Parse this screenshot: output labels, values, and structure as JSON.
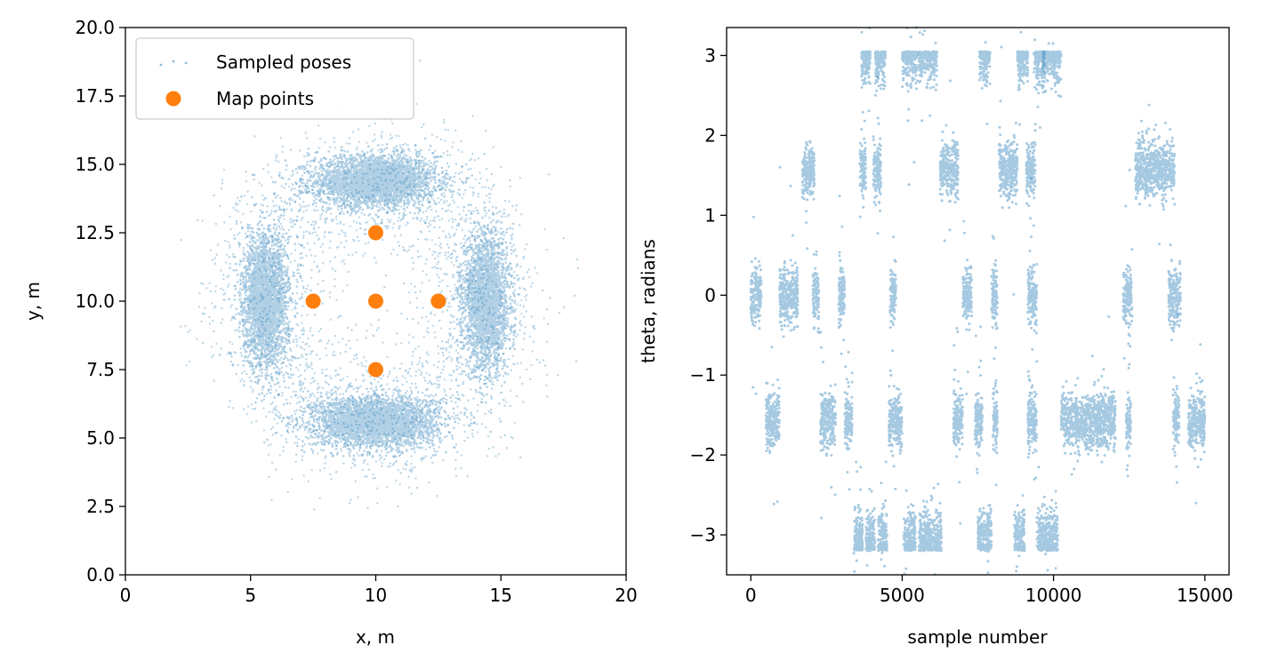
{
  "colors": {
    "poses": "#1f77b4",
    "map_points": "#ff7f0e",
    "axes": "#000000",
    "legend_border": "#cccccc",
    "background": "#ffffff"
  },
  "chart_data": [
    {
      "type": "scatter",
      "xlabel": "x, m",
      "ylabel": "y, m",
      "xlim": [
        0,
        20
      ],
      "ylim": [
        0,
        20
      ],
      "xticks": [
        0,
        5,
        10,
        15,
        20
      ],
      "xtick_labels": [
        "0",
        "5",
        "10",
        "15",
        "20"
      ],
      "yticks": [
        0,
        2.5,
        5,
        7.5,
        10,
        12.5,
        15,
        17.5,
        20
      ],
      "ytick_labels": [
        "0.0",
        "2.5",
        "5.0",
        "7.5",
        "10.0",
        "12.5",
        "15.0",
        "17.5",
        "20.0"
      ],
      "grid": false,
      "legend": {
        "position": "upper-left",
        "entries": [
          "Sampled poses",
          "Map points"
        ]
      },
      "series": [
        {
          "name": "Sampled poses",
          "marker": "dot",
          "clusters": [
            {
              "center": [
                10,
                14.4
              ],
              "spread": [
                1.2,
                0.45
              ],
              "points": 3200
            },
            {
              "center": [
                10,
                5.6
              ],
              "spread": [
                1.2,
                0.45
              ],
              "points": 3200
            },
            {
              "center": [
                5.6,
                10
              ],
              "spread": [
                0.45,
                1.2
              ],
              "points": 2600
            },
            {
              "center": [
                14.4,
                10
              ],
              "spread": [
                0.45,
                1.2
              ],
              "points": 2600
            }
          ],
          "ring": {
            "center": [
              10,
              10
            ],
            "radius": 4.6,
            "spread": 1.3,
            "points": 3000
          }
        },
        {
          "name": "Map points",
          "marker": "circle",
          "x": [
            10,
            7.5,
            10,
            12.5,
            10
          ],
          "y": [
            12.5,
            10,
            10,
            10,
            7.5
          ]
        }
      ]
    },
    {
      "type": "scatter",
      "xlabel": "sample number",
      "ylabel": "theta, radians",
      "xlim": [
        -800,
        15800
      ],
      "ylim": [
        -3.5,
        3.35
      ],
      "xticks": [
        0,
        5000,
        10000,
        15000
      ],
      "xtick_labels": [
        "0",
        "5000",
        "10000",
        "15000"
      ],
      "yticks": [
        -3,
        -2,
        -1,
        0,
        1,
        2,
        3
      ],
      "ytick_labels": [
        "−3",
        "−2",
        "−1",
        "0",
        "1",
        "2",
        "3"
      ],
      "grid": false,
      "series": [
        {
          "marker": "dot",
          "x_range": [
            0,
            15000
          ],
          "theta_levels": [
            3.0,
            1.57,
            0,
            -1.57,
            -3.05
          ],
          "segments": [
            {
              "start": 0,
              "end": 350,
              "theta": 0
            },
            {
              "start": 500,
              "end": 950,
              "theta": -1.57
            },
            {
              "start": 950,
              "end": 1550,
              "theta": 0
            },
            {
              "start": 1700,
              "end": 2100,
              "theta": 1.57
            },
            {
              "start": 2050,
              "end": 2250,
              "theta": 0
            },
            {
              "start": 2300,
              "end": 2800,
              "theta": -1.57
            },
            {
              "start": 2900,
              "end": 3100,
              "theta": 0
            },
            {
              "start": 3100,
              "end": 3350,
              "theta": -1.57
            },
            {
              "start": 3400,
              "end": 3700,
              "theta": -3.05
            },
            {
              "start": 3600,
              "end": 3800,
              "theta": 1.57
            },
            {
              "start": 3650,
              "end": 3950,
              "theta": 3.0
            },
            {
              "start": 3800,
              "end": 4100,
              "theta": -3.05
            },
            {
              "start": 4050,
              "end": 4300,
              "theta": 1.57
            },
            {
              "start": 4100,
              "end": 4450,
              "theta": 3.0
            },
            {
              "start": 4200,
              "end": 4500,
              "theta": -3.05
            },
            {
              "start": 4600,
              "end": 4800,
              "theta": 0
            },
            {
              "start": 4550,
              "end": 5000,
              "theta": -1.57
            },
            {
              "start": 5050,
              "end": 5450,
              "theta": -3.05
            },
            {
              "start": 5000,
              "end": 5500,
              "theta": 3.0
            },
            {
              "start": 5550,
              "end": 6150,
              "theta": 3.0
            },
            {
              "start": 5550,
              "end": 6300,
              "theta": -3.05
            },
            {
              "start": 6250,
              "end": 6850,
              "theta": 1.57
            },
            {
              "start": 6700,
              "end": 7000,
              "theta": -1.57
            },
            {
              "start": 7000,
              "end": 7300,
              "theta": 0
            },
            {
              "start": 7400,
              "end": 7650,
              "theta": -1.57
            },
            {
              "start": 7550,
              "end": 7900,
              "theta": 3.0
            },
            {
              "start": 7500,
              "end": 7950,
              "theta": -3.05
            },
            {
              "start": 7950,
              "end": 8150,
              "theta": 0
            },
            {
              "start": 8000,
              "end": 8150,
              "theta": -1.57
            },
            {
              "start": 8200,
              "end": 8800,
              "theta": 1.57
            },
            {
              "start": 8700,
              "end": 9050,
              "theta": -3.05
            },
            {
              "start": 8800,
              "end": 9150,
              "theta": 3.0
            },
            {
              "start": 9100,
              "end": 9400,
              "theta": 1.57
            },
            {
              "start": 9150,
              "end": 9450,
              "theta": -1.57
            },
            {
              "start": 9150,
              "end": 9450,
              "theta": 0
            },
            {
              "start": 9350,
              "end": 9700,
              "theta": 3.0
            },
            {
              "start": 9450,
              "end": 10150,
              "theta": -3.05
            },
            {
              "start": 9650,
              "end": 10250,
              "theta": 3.0
            },
            {
              "start": 10250,
              "end": 12050,
              "theta": -1.57
            },
            {
              "start": 12300,
              "end": 12600,
              "theta": 0
            },
            {
              "start": 12400,
              "end": 12550,
              "theta": -1.57
            },
            {
              "start": 12700,
              "end": 14000,
              "theta": 1.57
            },
            {
              "start": 13800,
              "end": 14200,
              "theta": 0
            },
            {
              "start": 13950,
              "end": 14150,
              "theta": -1.57
            },
            {
              "start": 14450,
              "end": 15000,
              "theta": -1.57
            }
          ]
        }
      ]
    }
  ]
}
